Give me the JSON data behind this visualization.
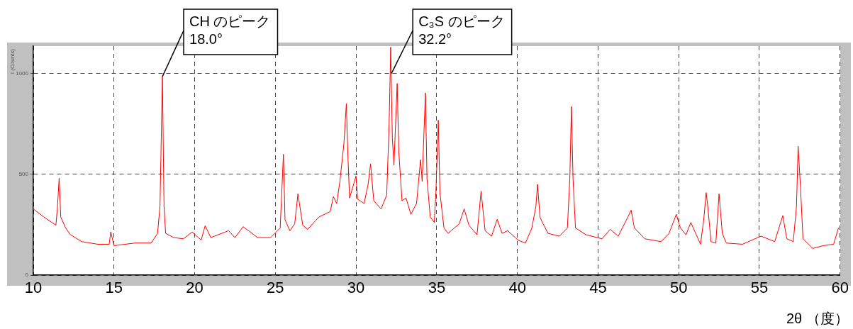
{
  "chart_data": {
    "type": "line",
    "xlabel": "2θ （度）",
    "ylabel": "I (Counts)",
    "x": [
      10.0,
      10.65,
      11.15,
      11.4,
      11.5,
      11.6,
      11.7,
      12.0,
      12.3,
      13.0,
      14.0,
      14.7,
      14.8,
      15.0,
      16.3,
      17.3,
      17.7,
      17.85,
      18.0,
      18.1,
      18.2,
      18.7,
      19.3,
      19.85,
      20.4,
      20.65,
      21.0,
      22.1,
      22.5,
      23.0,
      23.9,
      24.7,
      25.3,
      25.5,
      25.6,
      25.9,
      26.2,
      26.4,
      26.7,
      27.0,
      27.7,
      28.4,
      28.6,
      28.8,
      29.0,
      29.25,
      29.4,
      29.5,
      29.6,
      29.85,
      30.0,
      30.1,
      30.5,
      30.75,
      30.9,
      31.1,
      31.55,
      31.9,
      32.05,
      32.15,
      32.25,
      32.35,
      32.45,
      32.55,
      32.65,
      32.85,
      33.1,
      33.4,
      33.75,
      34.0,
      34.1,
      34.3,
      34.4,
      34.6,
      34.85,
      34.95,
      35.1,
      35.2,
      35.45,
      35.7,
      36.4,
      36.7,
      37.0,
      37.5,
      37.75,
      38.0,
      38.4,
      38.75,
      39.05,
      39.4,
      40.05,
      40.5,
      40.9,
      41.15,
      41.25,
      41.4,
      41.55,
      41.9,
      42.6,
      43.1,
      43.25,
      43.35,
      43.45,
      43.6,
      44.25,
      45.25,
      45.75,
      46.25,
      46.85,
      47.05,
      47.25,
      47.9,
      48.9,
      49.4,
      49.85,
      50.1,
      50.45,
      50.75,
      51.35,
      51.55,
      51.7,
      51.8,
      52.0,
      52.3,
      52.5,
      52.7,
      52.95,
      53.95,
      55.1,
      55.95,
      56.45,
      56.7,
      57.1,
      57.3,
      57.4,
      57.55,
      57.7,
      58.3,
      58.95,
      59.6,
      59.9
    ],
    "series": [
      {
        "color": "#ff0000",
        "values": [
          328,
          288,
          261,
          247,
          342,
          481,
          288,
          234,
          200,
          166,
          153,
          153,
          214,
          146,
          159,
          159,
          207,
          342,
          984,
          342,
          207,
          186,
          180,
          214,
          173,
          245,
          186,
          220,
          186,
          240,
          186,
          186,
          234,
          599,
          274,
          220,
          254,
          403,
          247,
          227,
          288,
          315,
          389,
          355,
          464,
          653,
          849,
          585,
          382,
          450,
          491,
          376,
          355,
          450,
          551,
          369,
          328,
          396,
          747,
          1130,
          680,
          545,
          747,
          950,
          612,
          369,
          382,
          301,
          355,
          572,
          464,
          903,
          477,
          288,
          261,
          409,
          768,
          409,
          234,
          207,
          254,
          328,
          247,
          200,
          416,
          220,
          193,
          277,
          207,
          220,
          173,
          159,
          234,
          342,
          450,
          288,
          261,
          207,
          193,
          234,
          477,
          835,
          477,
          234,
          200,
          180,
          227,
          193,
          288,
          322,
          234,
          180,
          166,
          207,
          301,
          234,
          200,
          261,
          153,
          274,
          409,
          342,
          166,
          159,
          403,
          207,
          159,
          153,
          193,
          166,
          295,
          180,
          166,
          342,
          639,
          430,
          180,
          132,
          146,
          153,
          234
        ]
      }
    ],
    "xlim": [
      10,
      60
    ],
    "xticks": [
      10,
      15,
      20,
      25,
      30,
      35,
      40,
      45,
      50,
      55,
      60
    ],
    "ylim": [
      0,
      1135
    ],
    "yticks": [
      0,
      500,
      1000
    ],
    "grid": true,
    "legend": false,
    "marker": "none",
    "line_style": "solid",
    "annotations": [
      {
        "text": "CH のピーク\n18.0°",
        "x": 18.0,
        "y": 984
      },
      {
        "text": "C₃S のピーク\n32.2°",
        "x": 32.2,
        "y": 1000
      }
    ]
  }
}
